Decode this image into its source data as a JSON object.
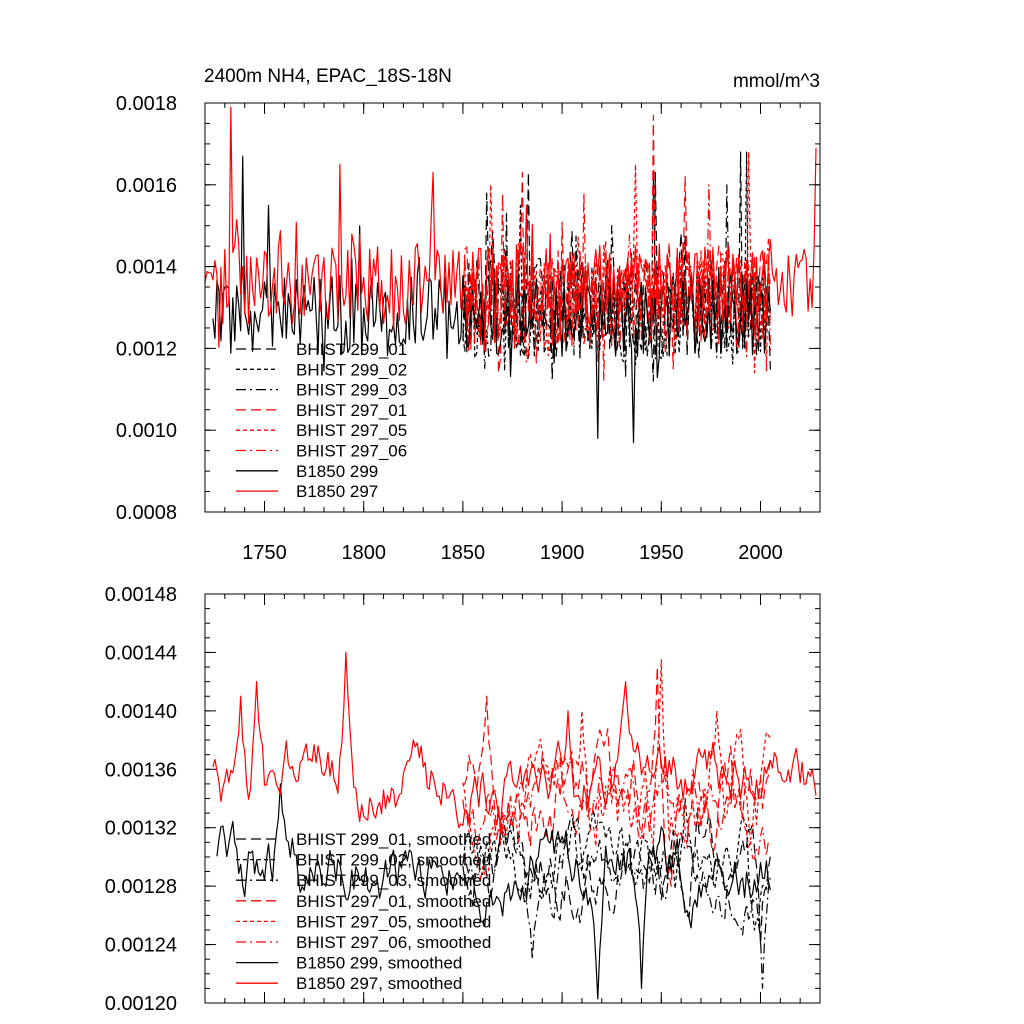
{
  "chart_data": [
    {
      "type": "line",
      "title": "2400m NH4, EPAC_18S-18N",
      "units": "mmol/m^3",
      "xlabel": "",
      "ylabel": "",
      "xlim": [
        1720,
        2030
      ],
      "ylim": [
        0.0008,
        0.0018
      ],
      "xticks": [
        1750,
        1800,
        1850,
        1900,
        1950,
        2000
      ],
      "xtick_labels": [
        "1750",
        "1800",
        "1850",
        "1900",
        "1950",
        "2000"
      ],
      "yticks": [
        0.0008,
        0.001,
        0.0012,
        0.0014,
        0.0016,
        0.0018
      ],
      "ytick_labels": [
        "0.0008",
        "0.0010",
        "0.0012",
        "0.0014",
        "0.0016",
        "0.0018"
      ],
      "legend_position": "lower-left",
      "series": [
        {
          "name": "BHIST 299_01",
          "color": "#000000",
          "dash": "long-dash",
          "x_range": [
            1850,
            2005
          ],
          "mean": 0.0013,
          "amplitude": 0.00012,
          "peaks": [
            [
              1862,
              0.00158
            ],
            [
              1883,
              0.00163
            ],
            [
              1947,
              0.00163
            ],
            [
              1990,
              0.00168
            ]
          ]
        },
        {
          "name": "BHIST 299_02",
          "color": "#000000",
          "dash": "short-dash",
          "x_range": [
            1850,
            2005
          ],
          "mean": 0.00128,
          "amplitude": 0.00012,
          "peaks": [
            [
              1879,
              0.00155
            ],
            [
              1946,
              0.00162
            ],
            [
              1993,
              0.00168
            ]
          ]
        },
        {
          "name": "BHIST 299_03",
          "color": "#000000",
          "dash": "dash-dot",
          "x_range": [
            1850,
            2005
          ],
          "mean": 0.00129,
          "amplitude": 0.00012,
          "peaks": [
            [
              1872,
              0.00153
            ],
            [
              1925,
              0.0015
            ],
            [
              1983,
              0.0016
            ]
          ]
        },
        {
          "name": "BHIST 297_01",
          "color": "#ff0000",
          "dash": "long-dash",
          "x_range": [
            1850,
            2005
          ],
          "mean": 0.00133,
          "amplitude": 0.00012,
          "peaks": [
            [
              1880,
              0.00163
            ],
            [
              1946,
              0.00177
            ],
            [
              1962,
              0.00162
            ]
          ]
        },
        {
          "name": "BHIST 297_05",
          "color": "#ff0000",
          "dash": "short-dash",
          "x_range": [
            1850,
            2005
          ],
          "mean": 0.00132,
          "amplitude": 0.00012,
          "peaks": [
            [
              1864,
              0.0016
            ],
            [
              1937,
              0.00165
            ],
            [
              1994,
              0.00168
            ]
          ]
        },
        {
          "name": "BHIST 297_06",
          "color": "#ff0000",
          "dash": "dash-dot",
          "x_range": [
            1850,
            2005
          ],
          "mean": 0.00131,
          "amplitude": 0.00012,
          "peaks": [
            [
              1870,
              0.00158
            ],
            [
              1911,
              0.00158
            ],
            [
              1974,
              0.0016
            ]
          ]
        },
        {
          "name": "B1850 299",
          "color": "#000000",
          "dash": "solid",
          "x_range": [
            1724,
            2005
          ],
          "mean": 0.00128,
          "amplitude": 0.0001,
          "peaks": [
            [
              1739,
              0.00167
            ],
            [
              1752,
              0.00155
            ],
            [
              1798,
              0.0015
            ],
            [
              1918,
              0.00098
            ],
            [
              1936,
              0.00097
            ]
          ]
        },
        {
          "name": "B1850 297",
          "color": "#ff0000",
          "dash": "solid",
          "x_range": [
            1720,
            2028
          ],
          "mean": 0.00136,
          "amplitude": 0.0001,
          "peaks": [
            [
              1733,
              0.0018
            ],
            [
              1788,
              0.00165
            ],
            [
              1835,
              0.00163
            ],
            [
              1882,
              0.00155
            ],
            [
              2028,
              0.00169
            ]
          ]
        }
      ]
    },
    {
      "type": "line",
      "title": "",
      "units": "",
      "xlabel": "",
      "ylabel": "",
      "xlim": [
        1720,
        2030
      ],
      "ylim": [
        0.0012,
        0.00148
      ],
      "xticks": [
        1750,
        1800,
        1850,
        1900,
        1950,
        2000
      ],
      "xtick_labels": [],
      "yticks": [
        0.0012,
        0.00124,
        0.00128,
        0.00132,
        0.00136,
        0.0014,
        0.00144,
        0.00148
      ],
      "ytick_labels": [
        "0.00120",
        "0.00124",
        "0.00128",
        "0.00132",
        "0.00136",
        "0.00140",
        "0.00144",
        "0.00148"
      ],
      "legend_position": "lower-left",
      "series": [
        {
          "name": "BHIST 299_01, smoothed",
          "color": "#000000",
          "dash": "long-dash",
          "x_range": [
            1850,
            2005
          ],
          "mean": 0.00129,
          "amplitude": 3e-05,
          "peaks": [
            [
              1968,
              0.00133
            ],
            [
              2000,
              0.00124
            ]
          ]
        },
        {
          "name": "BHIST 299_02, smoothed",
          "color": "#000000",
          "dash": "short-dash",
          "x_range": [
            1850,
            2005
          ],
          "mean": 0.00129,
          "amplitude": 3e-05,
          "peaks": [
            [
              1962,
              0.00134
            ],
            [
              1997,
              0.00125
            ]
          ]
        },
        {
          "name": "BHIST 299_03, smoothed",
          "color": "#000000",
          "dash": "dash-dot",
          "x_range": [
            1850,
            2005
          ],
          "mean": 0.00129,
          "amplitude": 3e-05,
          "peaks": [
            [
              1885,
              0.00123
            ],
            [
              2001,
              0.00121
            ]
          ]
        },
        {
          "name": "BHIST 297_01, smoothed",
          "color": "#ff0000",
          "dash": "long-dash",
          "x_range": [
            1850,
            2005
          ],
          "mean": 0.00134,
          "amplitude": 4e-05,
          "peaks": [
            [
              1862,
              0.00141
            ],
            [
              1948,
              0.00143
            ],
            [
              1995,
              0.00136
            ]
          ]
        },
        {
          "name": "BHIST 297_05, smoothed",
          "color": "#ff0000",
          "dash": "short-dash",
          "x_range": [
            1850,
            2005
          ],
          "mean": 0.00134,
          "amplitude": 4e-05,
          "peaks": [
            [
              1910,
              0.0014
            ],
            [
              1950,
              0.001435
            ],
            [
              1978,
              0.0014
            ]
          ]
        },
        {
          "name": "BHIST 297_06, smoothed",
          "color": "#ff0000",
          "dash": "dash-dot",
          "x_range": [
            1850,
            2005
          ],
          "mean": 0.00133,
          "amplitude": 3e-05,
          "peaks": [
            [
              1890,
              0.00137
            ],
            [
              1966,
              0.00136
            ]
          ]
        },
        {
          "name": "B1850 299, smoothed",
          "color": "#000000",
          "dash": "solid",
          "x_range": [
            1726,
            2005
          ],
          "mean": 0.00129,
          "amplitude": 3e-05,
          "peaks": [
            [
              1758,
              0.00135
            ],
            [
              1918,
              0.0012
            ],
            [
              1940,
              0.00121
            ]
          ]
        },
        {
          "name": "B1850 297, smoothed",
          "color": "#ff0000",
          "dash": "solid",
          "x_range": [
            1724,
            2028
          ],
          "mean": 0.00135,
          "amplitude": 3e-05,
          "peaks": [
            [
              1738,
              0.00141
            ],
            [
              1746,
              0.00142
            ],
            [
              1791,
              0.00144
            ],
            [
              1903,
              0.0014
            ],
            [
              1932,
              0.00142
            ],
            [
              2026,
              0.00136
            ]
          ]
        }
      ]
    }
  ]
}
